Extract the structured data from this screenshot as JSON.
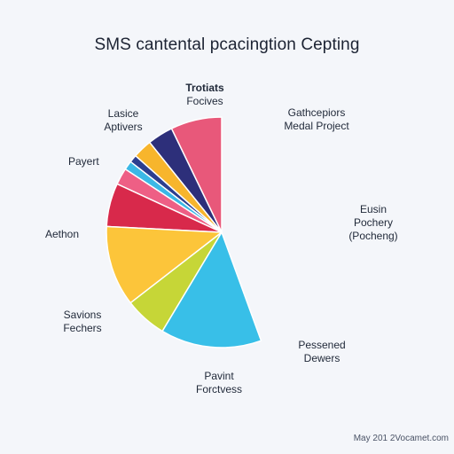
{
  "title": "SMS cantental pcacingtion Cepting",
  "footer": "May 201 2Vocamet.com",
  "colors": {
    "background": "#f4f6fa",
    "text": "#1c2333"
  },
  "labels": [
    {
      "line1": "Trotiats",
      "line2": "Focives"
    },
    {
      "line1": "Lasice",
      "line2": "Aptivers"
    },
    {
      "line1": "Gathcepiors",
      "line2": "Medal Project"
    },
    {
      "line1": "Payert",
      "line2": ""
    },
    {
      "line1": "Eusin",
      "line2": "Pochery"
    },
    {
      "line1": "",
      "line2": "(Pocheng)"
    },
    {
      "line1": "Aethon",
      "line2": ""
    },
    {
      "line1": "Savions",
      "line2": "Fechers"
    },
    {
      "line1": "Pessened",
      "line2": "Dewers"
    },
    {
      "line1": "Pavint",
      "line2": "Forctvess"
    }
  ],
  "chart_data": {
    "type": "pie",
    "title": "SMS cantental pcacingtion Cepting",
    "slices": [
      {
        "value": 4.0,
        "color": "#e8587a"
      },
      {
        "value": 2.0,
        "color": "#2d2f7a"
      },
      {
        "value": 1.5,
        "color": "#f7b52c"
      },
      {
        "value": 0.6,
        "color": "#2c3e8f"
      },
      {
        "value": 0.7,
        "color": "#3bb8e6"
      },
      {
        "value": 1.3,
        "color": "#ee5f85"
      },
      {
        "value": 3.4,
        "color": "#d8294b"
      },
      {
        "value": 6.3,
        "color": "#fcc53a"
      },
      {
        "value": 3.3,
        "color": "#c6d637"
      },
      {
        "value": 7.9,
        "color": "#38bfe8"
      }
    ]
  }
}
